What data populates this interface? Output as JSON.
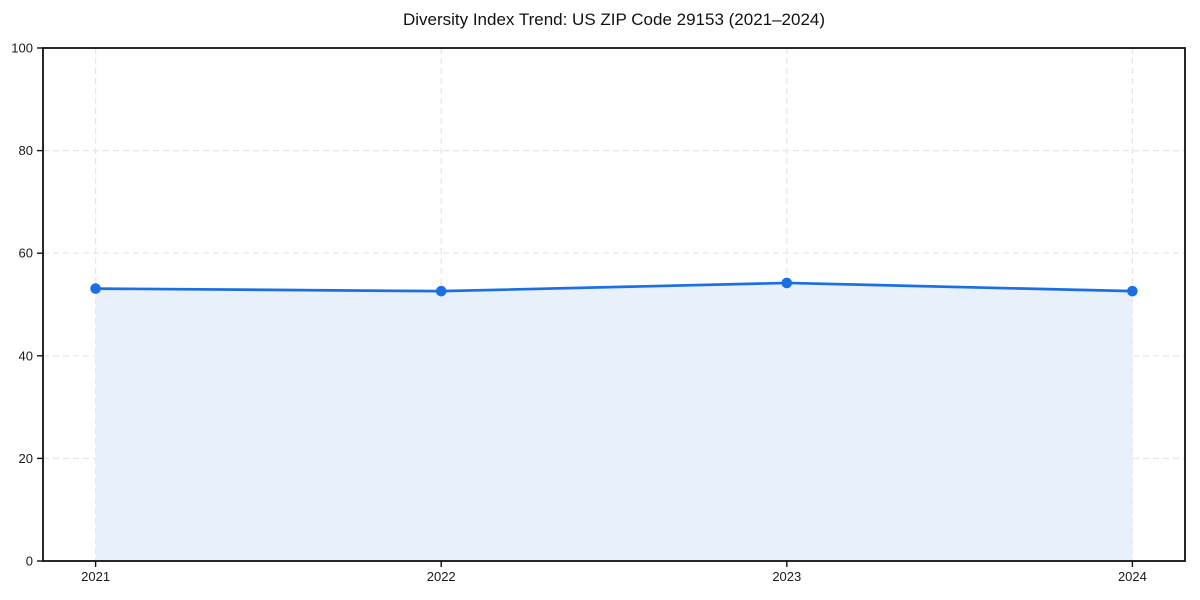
{
  "chart_data": {
    "type": "area",
    "title": "Diversity Index Trend: US ZIP Code 29153 (2021–2024)",
    "categories": [
      "2021",
      "2022",
      "2023",
      "2024"
    ],
    "values": [
      53.1,
      52.6,
      54.2,
      52.6
    ],
    "ylim": [
      0,
      100
    ],
    "yticks": [
      0,
      20,
      40,
      60,
      80,
      100
    ],
    "xlabel": "",
    "ylabel": "",
    "grid": "dashed",
    "legend_position": "none",
    "colors": {
      "line": "#1c6fe2",
      "marker": "#1c6fe2",
      "fill": "#e8f0fc",
      "grid": "#e5e5e5",
      "spine": "#111111",
      "title": "#111111",
      "tick_label": "#1a1a1a",
      "background": "#ffffff"
    }
  }
}
